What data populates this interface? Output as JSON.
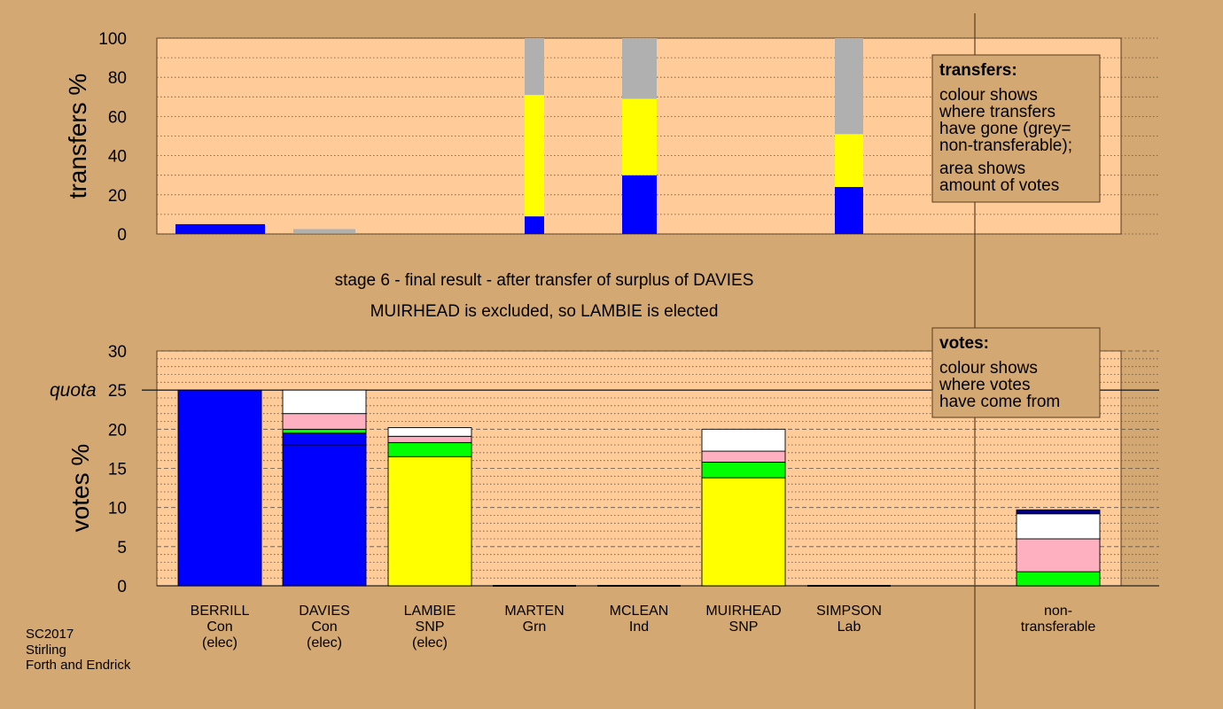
{
  "colors": {
    "background": "#d4a872",
    "plot_bg": "#ffcc99",
    "legend_bg": "#d4a872",
    "Con": "#0000ff",
    "SNP": "#ffff00",
    "Grn": "#00ff00",
    "Lab": "#ffb0c0",
    "Ind": "#ffffff",
    "darkblue": "#000080",
    "nontransferable": "#b0b0b0"
  },
  "stage": {
    "line1": "stage 6 - final result - after transfer of surplus of DAVIES",
    "line2": "MUIRHEAD is excluded, so LAMBIE is elected"
  },
  "legends": {
    "transfers": {
      "title": "transfers:",
      "lines": [
        "colour shows",
        "where transfers",
        "have gone (grey=",
        "non-transferable);",
        "area shows",
        "amount of votes"
      ]
    },
    "votes": {
      "title": "votes:",
      "lines": [
        "colour shows",
        "where votes",
        "have come from"
      ]
    }
  },
  "footer": [
    "SC2017",
    "Stirling",
    "Forth and Endrick"
  ],
  "quota_label": "quota",
  "chart_data": [
    {
      "type": "bar",
      "ylabel": "transfers %",
      "ylim": [
        0,
        100
      ],
      "yticks": [
        0,
        20,
        40,
        60,
        80,
        100
      ],
      "stacking": "stacked, width proportional to votes transferred",
      "bars": [
        {
          "candidate": "BERRILL",
          "segments": [
            {
              "party": "Con",
              "value": 5
            }
          ]
        },
        {
          "candidate": "DAVIES",
          "segments": [
            {
              "party": "Grn",
              "value": 0.5
            },
            {
              "party": "nontransferable",
              "value": 2
            }
          ]
        },
        {
          "candidate": "MARTEN",
          "segments": [
            {
              "party": "Con",
              "value": 9
            },
            {
              "party": "SNP",
              "value": 62
            },
            {
              "party": "nontransferable",
              "value": 29
            }
          ]
        },
        {
          "candidate": "MCLEAN",
          "segments": [
            {
              "party": "Con",
              "value": 30
            },
            {
              "party": "SNP",
              "value": 39
            },
            {
              "party": "nontransferable",
              "value": 31
            }
          ]
        },
        {
          "candidate": "SIMPSON",
          "segments": [
            {
              "party": "Con",
              "value": 24
            },
            {
              "party": "SNP",
              "value": 27
            },
            {
              "party": "nontransferable",
              "value": 49
            }
          ]
        }
      ]
    },
    {
      "type": "bar",
      "ylabel": "votes %",
      "ylim": [
        0,
        30
      ],
      "yticks": [
        0,
        5,
        10,
        15,
        20,
        25,
        30
      ],
      "quota": 25,
      "categories": [
        {
          "name": "BERRILL",
          "party": "Con",
          "status": "(elec)",
          "segments": [
            {
              "party": "Con",
              "value": 25
            }
          ]
        },
        {
          "name": "DAVIES",
          "party": "Con",
          "status": "(elec)",
          "segments": [
            {
              "party": "Con",
              "value": 18
            },
            {
              "party": "Con",
              "value": 1.5
            },
            {
              "party": "Grn",
              "value": 0.5
            },
            {
              "party": "Lab",
              "value": 2
            },
            {
              "party": "Ind",
              "value": 3
            }
          ]
        },
        {
          "name": "LAMBIE",
          "party": "SNP",
          "status": "(elec)",
          "segments": [
            {
              "party": "SNP",
              "value": 16.5
            },
            {
              "party": "Grn",
              "value": 1.8
            },
            {
              "party": "Lab",
              "value": 0.8
            },
            {
              "party": "Ind",
              "value": 1.1
            }
          ]
        },
        {
          "name": "MARTEN",
          "party": "Grn",
          "status": "",
          "segments": []
        },
        {
          "name": "MCLEAN",
          "party": "Ind",
          "status": "",
          "segments": []
        },
        {
          "name": "MUIRHEAD",
          "party": "SNP",
          "status": "",
          "segments": [
            {
              "party": "SNP",
              "value": 13.8
            },
            {
              "party": "Grn",
              "value": 2
            },
            {
              "party": "Lab",
              "value": 1.4
            },
            {
              "party": "Ind",
              "value": 2.8
            }
          ]
        },
        {
          "name": "SIMPSON",
          "party": "Lab",
          "status": "",
          "segments": []
        }
      ],
      "nontransferable": {
        "label_line1": "non-",
        "label_line2": "transferable",
        "segments": [
          {
            "party": "Grn",
            "value": 1.8
          },
          {
            "party": "Lab",
            "value": 4.2
          },
          {
            "party": "Ind",
            "value": 3.2
          },
          {
            "party": "darkblue",
            "value": 0.5
          }
        ]
      }
    }
  ]
}
